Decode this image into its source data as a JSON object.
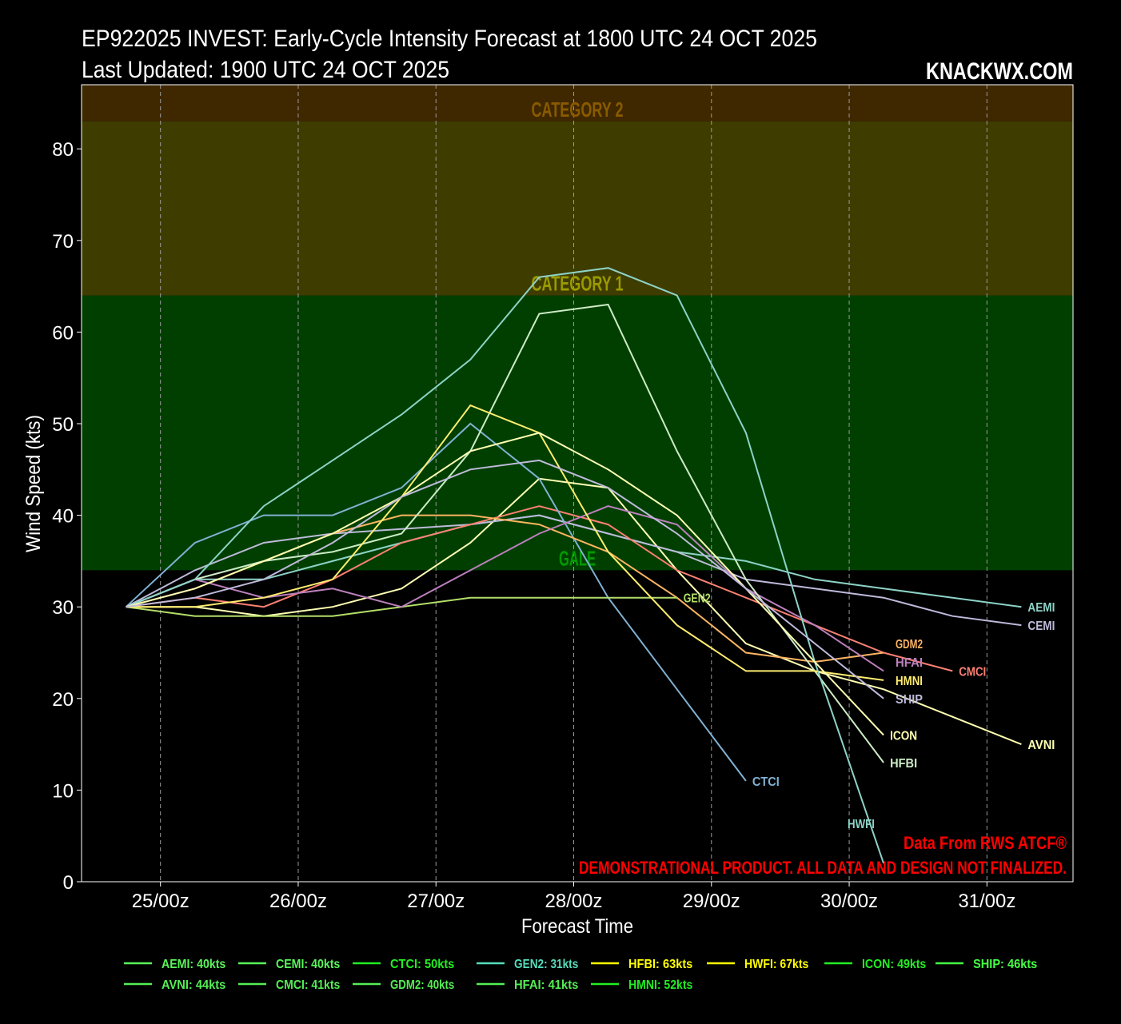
{
  "chart_data": {
    "type": "line",
    "title": "EP922025 INVEST: Early-Cycle Intensity Forecast at 1800 UTC 24 OCT 2025",
    "subtitle": "Last Updated: 1900 UTC 24 OCT 2025",
    "brand": "KNACKWX.COM",
    "xlabel": "Forecast Time",
    "ylabel": "Wind Speed (kts)",
    "ylim": [
      0,
      87
    ],
    "xlim": [
      "2025-10-24T10:15Z",
      "2025-10-31T15:00Z"
    ],
    "grid": {
      "vertical": true,
      "horizontal": false
    },
    "yticks": [
      0,
      10,
      20,
      30,
      40,
      50,
      60,
      70,
      80
    ],
    "xticks": [
      {
        "t": "2025-10-25T00:00Z",
        "label": "25/00z"
      },
      {
        "t": "2025-10-26T00:00Z",
        "label": "26/00z"
      },
      {
        "t": "2025-10-27T00:00Z",
        "label": "27/00z"
      },
      {
        "t": "2025-10-28T00:00Z",
        "label": "28/00z"
      },
      {
        "t": "2025-10-29T00:00Z",
        "label": "29/00z"
      },
      {
        "t": "2025-10-30T00:00Z",
        "label": "30/00z"
      },
      {
        "t": "2025-10-31T00:00Z",
        "label": "31/00z"
      }
    ],
    "bands": [
      {
        "label": "GALE",
        "from": 34,
        "to": 64,
        "color": "#003f00",
        "label_color": "#009a00"
      },
      {
        "label": "CATEGORY 1",
        "from": 64,
        "to": 83,
        "color": "#3f3c00",
        "label_color": "#9a9a00"
      },
      {
        "label": "CATEGORY 2",
        "from": 83,
        "to": 87,
        "color": "#3f2800",
        "label_color": "#8a5a00"
      }
    ],
    "times": [
      "2025-10-24T18:00Z",
      "2025-10-25T06:00Z",
      "2025-10-25T18:00Z",
      "2025-10-26T06:00Z",
      "2025-10-26T18:00Z",
      "2025-10-27T06:00Z",
      "2025-10-27T18:00Z",
      "2025-10-28T06:00Z",
      "2025-10-28T18:00Z",
      "2025-10-29T06:00Z",
      "2025-10-29T18:00Z",
      "2025-10-30T06:00Z",
      "2025-10-30T18:00Z",
      "2025-10-31T06:00Z"
    ],
    "series": [
      {
        "name": "AEMI",
        "color": "#8dd3c7",
        "values": [
          30,
          33,
          33,
          35,
          37,
          39,
          40,
          38,
          36,
          35,
          33,
          32,
          31,
          30
        ]
      },
      {
        "name": "AVNI",
        "color": "#ffffb3",
        "values": [
          30,
          30,
          29,
          30,
          32,
          37,
          44,
          43,
          34,
          26,
          23,
          21,
          18,
          15
        ]
      },
      {
        "name": "CEMI",
        "color": "#bebada",
        "values": [
          30,
          34,
          37,
          38,
          38.5,
          39,
          40,
          38,
          36,
          33,
          32,
          31,
          29,
          28
        ]
      },
      {
        "name": "CMCI",
        "color": "#fb8072",
        "values": [
          30,
          31,
          30,
          33,
          37,
          39,
          41,
          39,
          34,
          31,
          28,
          25,
          23
        ]
      },
      {
        "name": "CTCI",
        "color": "#80b1d3",
        "values": [
          30,
          37,
          40,
          40,
          43,
          50,
          44,
          31,
          21,
          11
        ]
      },
      {
        "name": "GDM2",
        "color": "#fdb462",
        "values": [
          30,
          32,
          35,
          38,
          40,
          40,
          39,
          36,
          31,
          25,
          24,
          25
        ]
      },
      {
        "name": "GEN2",
        "color": "#b3de69",
        "values": [
          30,
          29,
          29,
          29,
          30,
          31,
          31,
          31,
          31
        ]
      },
      {
        "name": "HFAI",
        "color": "#bc80bd",
        "values": [
          30,
          33,
          31,
          32,
          30,
          34,
          38,
          41,
          39,
          32,
          28,
          23
        ]
      },
      {
        "name": "HFBI",
        "color": "#ccebc5",
        "values": [
          30,
          33,
          35,
          36,
          38,
          47,
          62,
          63,
          47,
          33,
          23,
          13
        ]
      },
      {
        "name": "HMNI",
        "color": "#ffed6f",
        "values": [
          30,
          30,
          31,
          33,
          42,
          52,
          49,
          36,
          28,
          23,
          23,
          22
        ]
      },
      {
        "name": "HWFI",
        "color": "#8dd3c7",
        "values": [
          30,
          33,
          41,
          46,
          51,
          57,
          66,
          67,
          64,
          49,
          24,
          2
        ]
      },
      {
        "name": "ICON",
        "color": "#ffffb3",
        "values": [
          30,
          32,
          35,
          38,
          42,
          47,
          49,
          45,
          40,
          32,
          24,
          16
        ]
      },
      {
        "name": "SHIP",
        "color": "#bebada",
        "values": [
          30,
          31,
          33,
          37,
          42,
          45,
          46,
          43,
          38,
          32,
          26,
          20
        ]
      }
    ],
    "legend": {
      "placement": "bottom",
      "entries": [
        {
          "label": "AEMI: 40kts",
          "color": "#5af55a"
        },
        {
          "label": "CEMI: 40kts",
          "color": "#5af55a"
        },
        {
          "label": "CTCI: 50kts",
          "color": "#22ee22"
        },
        {
          "label": "GEN2: 31kts",
          "color": "#55ddbb"
        },
        {
          "label": "HFBI: 63kts",
          "color": "#ffff00"
        },
        {
          "label": "HWFI: 67kts",
          "color": "#ffff00"
        },
        {
          "label": "ICON: 49kts",
          "color": "#22ee22"
        },
        {
          "label": "SHIP: 46kts",
          "color": "#44ff44"
        },
        {
          "label": "AVNI: 44kts",
          "color": "#55ee55"
        },
        {
          "label": "CMCI: 41kts",
          "color": "#55ee55"
        },
        {
          "label": "GDM2: 40kts",
          "color": "#55ee55"
        },
        {
          "label": "HFAI: 41kts",
          "color": "#55ee55"
        },
        {
          "label": "HMNI: 52kts",
          "color": "#22ee22"
        }
      ]
    },
    "annotations": {
      "source": "Data From RWS ATCF®",
      "disclaimer": "DEMONSTRATIONAL PRODUCT. ALL DATA AND DESIGN NOT FINALIZED.",
      "color": "#ff0000"
    }
  }
}
